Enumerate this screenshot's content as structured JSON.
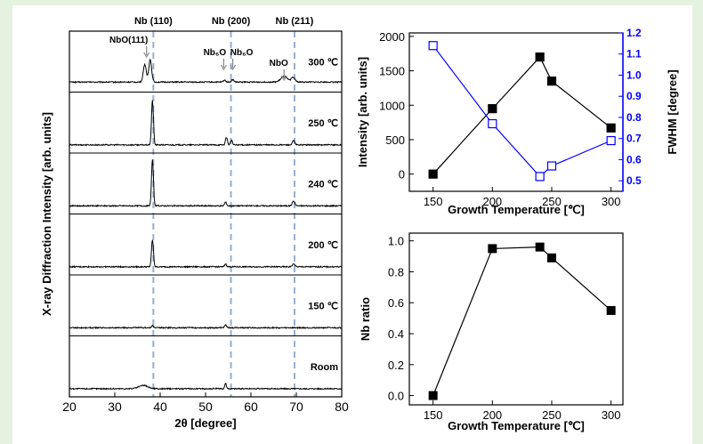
{
  "chart_data": [
    {
      "id": "xrd",
      "type": "line",
      "xlabel": "2θ [degree]",
      "ylabel": "X-ray Diffraction Intensity [arb. units]",
      "xlim": [
        20,
        80
      ],
      "xticks": [
        "20",
        "30",
        "40",
        "50",
        "60",
        "70",
        "80"
      ],
      "reference_lines": [
        {
          "label": "Nb (110)",
          "x": 38.5
        },
        {
          "label": "Nb (200)",
          "x": 55.6
        },
        {
          "label": "Nb (211)",
          "x": 69.6
        }
      ],
      "annotations": [
        {
          "label": "NbO(111)",
          "x": 37.0,
          "panel": 0
        },
        {
          "label": "Nb₆O",
          "x": 54.0,
          "panel": 0
        },
        {
          "label": "Nb₆O",
          "x": 56.0,
          "panel": 0
        },
        {
          "label": "NbO",
          "x": 67.3,
          "panel": 0
        }
      ],
      "series": [
        {
          "name": "300 ℃",
          "baseline": 0.1,
          "peaks": [
            [
              36.6,
              0.38,
              0.45
            ],
            [
              37.8,
              0.48,
              0.45
            ],
            [
              54.2,
              0.04,
              0.4
            ],
            [
              56.0,
              0.05,
              0.4
            ],
            [
              67.3,
              0.12,
              1.0
            ],
            [
              69.3,
              0.1,
              0.6
            ]
          ]
        },
        {
          "name": "250 ℃",
          "baseline": 0.06,
          "peaks": [
            [
              38.3,
              0.95,
              0.3
            ],
            [
              54.6,
              0.16,
              0.3
            ],
            [
              55.7,
              0.1,
              0.3
            ],
            [
              69.4,
              0.09,
              0.35
            ]
          ]
        },
        {
          "name": "240 ℃",
          "baseline": 0.06,
          "peaks": [
            [
              38.3,
              0.99,
              0.3
            ],
            [
              54.4,
              0.08,
              0.3
            ],
            [
              69.4,
              0.1,
              0.4
            ]
          ]
        },
        {
          "name": "200 ℃",
          "baseline": 0.06,
          "peaks": [
            [
              38.3,
              0.58,
              0.3
            ],
            [
              54.4,
              0.06,
              0.3
            ],
            [
              69.4,
              0.06,
              0.4
            ]
          ]
        },
        {
          "name": "150 ℃",
          "baseline": 0.06,
          "peaks": [
            [
              38.3,
              0.04,
              0.3
            ],
            [
              54.4,
              0.06,
              0.3
            ]
          ]
        },
        {
          "name": "Room",
          "baseline": 0.06,
          "peaks": [
            [
              36.3,
              0.07,
              1.4
            ],
            [
              54.4,
              0.12,
              0.25
            ]
          ]
        }
      ]
    },
    {
      "id": "intensity_fwhm",
      "type": "line",
      "xlabel": "Growth Temperature [℃]",
      "ylabel_left": "Intensity [arb. units]",
      "ylabel_right": "FWHM [degree]",
      "xlim": [
        130,
        310
      ],
      "xticks": [
        150,
        200,
        250,
        300
      ],
      "ylim_left": [
        -250,
        2050
      ],
      "yticks_left": [
        0,
        500,
        1000,
        1500,
        2000
      ],
      "ylim_right": [
        0.45,
        1.2
      ],
      "yticks_right": [
        "0.5",
        "0.6",
        "0.7",
        "0.8",
        "0.9",
        "1.0",
        "1.1",
        "1.2"
      ],
      "right_axis_color": "#0000ff",
      "series": [
        {
          "axis": "left",
          "color": "#000000",
          "marker": "filled-square",
          "x": [
            150,
            200,
            240,
            250,
            300
          ],
          "y": [
            0,
            950,
            1700,
            1350,
            670
          ]
        },
        {
          "axis": "right",
          "color": "#0000ff",
          "marker": "open-square",
          "x": [
            150,
            200,
            240,
            250,
            300
          ],
          "y": [
            1.14,
            0.77,
            0.52,
            0.57,
            0.69
          ]
        }
      ]
    },
    {
      "id": "nb_ratio",
      "type": "line",
      "xlabel": "Growth Temperature [℃]",
      "ylabel": "Nb ratio",
      "xlim": [
        130,
        310
      ],
      "xticks": [
        150,
        200,
        250,
        300
      ],
      "ylim": [
        -0.06,
        1.05
      ],
      "yticks": [
        "0.0",
        "0.2",
        "0.4",
        "0.6",
        "0.8",
        "1.0"
      ],
      "series": [
        {
          "color": "#000000",
          "marker": "filled-square",
          "x": [
            150,
            200,
            240,
            250,
            300
          ],
          "y": [
            0.0,
            0.95,
            0.96,
            0.89,
            0.55
          ]
        }
      ]
    }
  ]
}
